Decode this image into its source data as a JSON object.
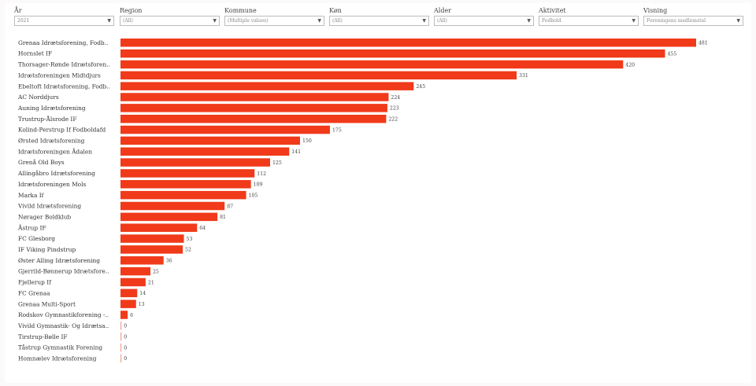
{
  "filters": [
    {
      "label": "År",
      "value": "2021"
    },
    {
      "label": "Region",
      "value": "(All)"
    },
    {
      "label": "Kommune",
      "value": "(Multiple values)"
    },
    {
      "label": "Køn",
      "value": "(All)"
    },
    {
      "label": "Alder",
      "value": "(All)"
    },
    {
      "label": "Aktivitet",
      "value": "Fodbold"
    },
    {
      "label": "Visning",
      "value": "Foreningens medlemstal"
    }
  ],
  "colors": {
    "bar": "#f03a1a",
    "zero_bar": "#f3a08f"
  },
  "chart_data": {
    "type": "bar",
    "orientation": "horizontal",
    "categories": [
      "Grenaa Idrætsforening, Fodb..",
      "Hornslet IF",
      "Thorsager-Rønde Idrætsforen..",
      "Idrætsforeningen Midtdjurs",
      "Ebeltoft Idrætsforening, Fodb..",
      "AC Norddjurs",
      "Auning Idrætsforening",
      "Trustrup-Ålsrode IF",
      "Kolind-Perstrup If Fodboldafd",
      "Ørsted Idrætsforening",
      "Idrætsforeningen Ådalen",
      "Grenå Old Boys",
      "Allingåbro Idrætsforening",
      "Idrætsforeningen Mols",
      "Marka If",
      "Vivild Idrætsforening",
      "Nørager Boldklub",
      "Åstrup IF",
      "FC Glesborg",
      "IF Viking Pindstrup",
      "Øster Alling Idrætsforening",
      "Gjerrild-Bønnerup Idrætsfore..",
      "Fjellerup If",
      "FC Grenaa",
      "Grenaa Multi-Sport",
      "Rodskov Gymnastikforening -..",
      "Vivild Gymnastik- Og Idrætsa..",
      "Tirstrup-Bølle IF",
      "Tåstrup Gymnastik Forening",
      "Homnælev Idrætsforening"
    ],
    "values": [
      481,
      455,
      420,
      331,
      245,
      224,
      223,
      222,
      175,
      150,
      141,
      125,
      112,
      109,
      105,
      87,
      81,
      64,
      53,
      52,
      36,
      25,
      21,
      14,
      13,
      6,
      0,
      0,
      0,
      0
    ],
    "xlim": [
      0,
      481
    ]
  }
}
